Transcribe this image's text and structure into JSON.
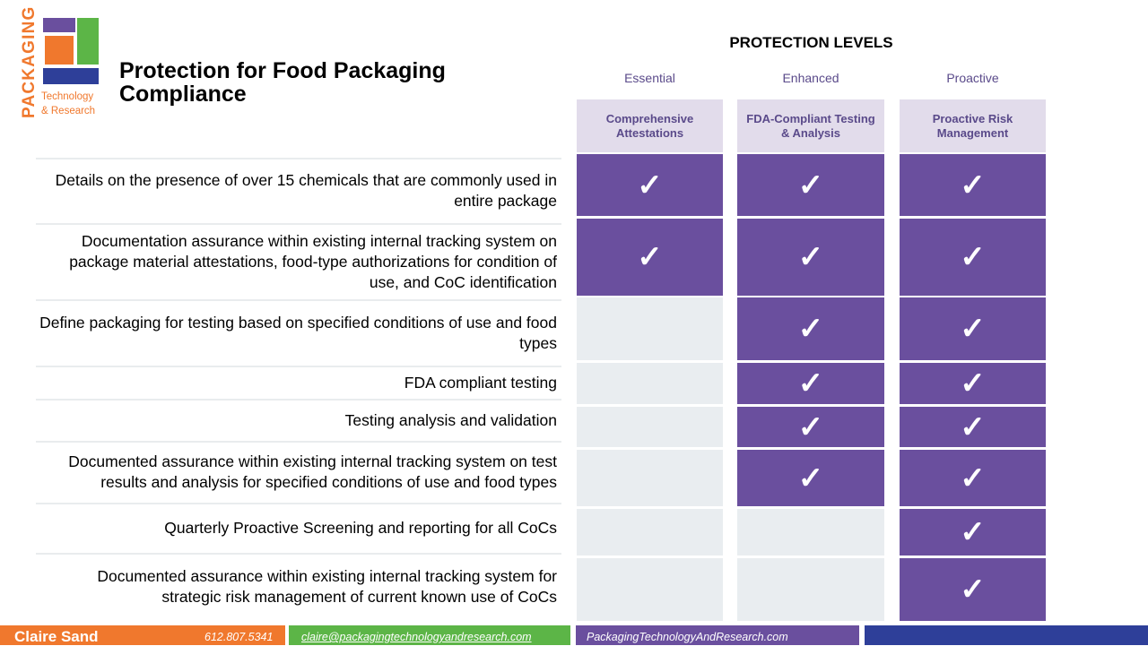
{
  "logo": {
    "vertical_text": "PACKAGING",
    "line1": "Technology",
    "line2": "& Research",
    "colors": {
      "orange": "#f0782d",
      "purple": "#6a4f9e",
      "green": "#5cb547",
      "blue": "#2e3f99"
    }
  },
  "title": "Protection for Food Packaging Compliance",
  "levels_title": "PROTECTION LEVELS",
  "columns": [
    {
      "level": "Essential",
      "header": "Comprehensive Attestations"
    },
    {
      "level": "Enhanced",
      "header": "FDA-Compliant Testing & Analysis"
    },
    {
      "level": "Proactive",
      "header": "Proactive Risk Management"
    }
  ],
  "check_symbol": "✓",
  "rows": [
    {
      "label": "Details on the presence of over 15 chemicals that are commonly used in entire package",
      "checks": [
        true,
        true,
        true
      ]
    },
    {
      "label": "Documentation assurance within existing internal tracking system on package material attestations, food-type authorizations for condition of use, and CoC identification",
      "checks": [
        true,
        true,
        true
      ]
    },
    {
      "label": "Define packaging for testing based on specified conditions of use and food types",
      "checks": [
        false,
        true,
        true
      ]
    },
    {
      "label": "FDA compliant testing",
      "checks": [
        false,
        true,
        true
      ]
    },
    {
      "label": "Testing analysis and validation",
      "checks": [
        false,
        true,
        true
      ]
    },
    {
      "label": "Documented assurance within existing internal tracking system on test results and analysis for specified conditions of use and food types",
      "checks": [
        false,
        true,
        true
      ]
    },
    {
      "label": "Quarterly Proactive Screening and reporting for all CoCs",
      "checks": [
        false,
        false,
        true
      ]
    },
    {
      "label": "Documented assurance within existing internal tracking system for strategic risk management of current known use of CoCs",
      "checks": [
        false,
        false,
        true
      ]
    }
  ],
  "footer": {
    "name": "Claire Sand",
    "phone": "612.807.5341",
    "email": "claire@packagingtechnologyandresearch.com",
    "website": "PackagingTechnologyAndResearch.com"
  },
  "colors": {
    "accent_purple": "#6a4f9e",
    "header_lavender": "#e2dceb",
    "empty_cell": "#e9edf0",
    "orange": "#f0782d",
    "green": "#5cb547",
    "blue": "#2e3f99"
  }
}
